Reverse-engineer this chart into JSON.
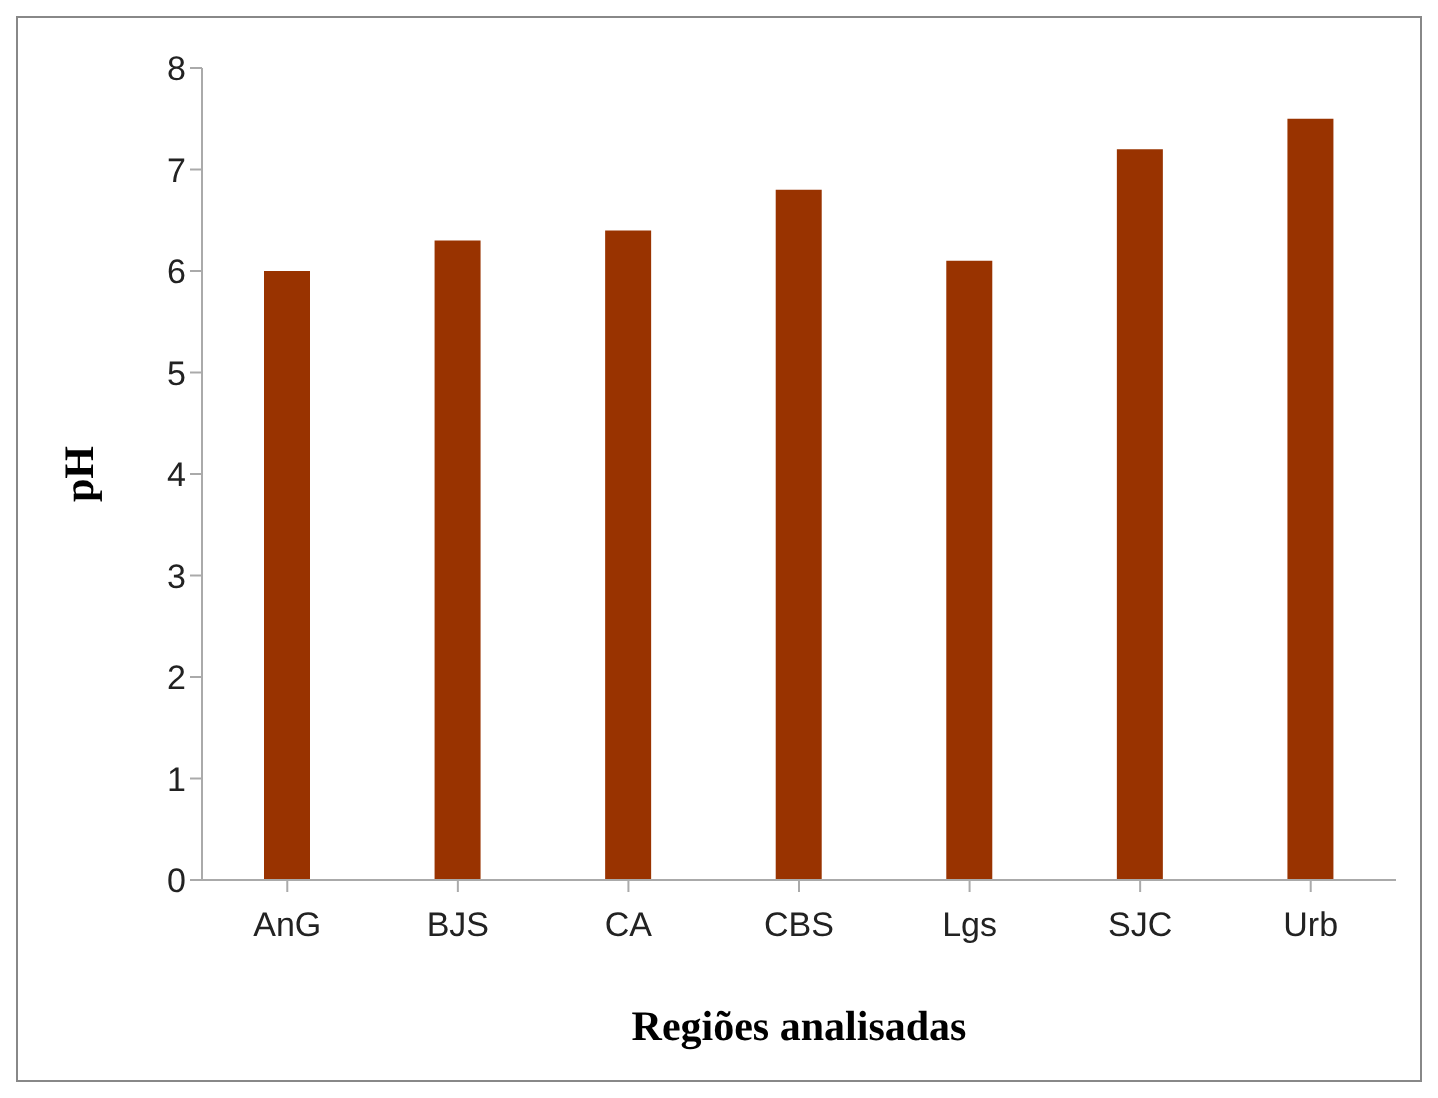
{
  "chart_data": {
    "type": "bar",
    "xlabel": "Regiões analisadas",
    "ylabel": "pH",
    "categories": [
      "AnG",
      "BJS",
      "CA",
      "CBS",
      "Lgs",
      "SJC",
      "Urb"
    ],
    "values": [
      6.0,
      6.3,
      6.4,
      6.8,
      6.1,
      7.2,
      7.5
    ],
    "color": "#993300",
    "ylim": [
      0,
      8
    ],
    "yticks": [
      0,
      1,
      2,
      3,
      4,
      5,
      6,
      7,
      8
    ],
    "grid": false,
    "legend": false
  }
}
